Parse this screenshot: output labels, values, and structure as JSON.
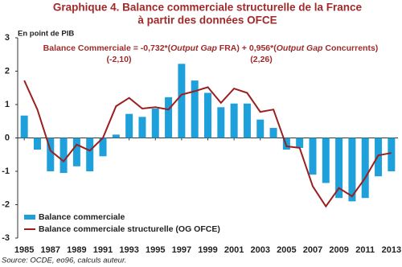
{
  "chart_data": {
    "type": "combo",
    "title": [
      "Graphique 4. Balance commerciale structurelle de la France",
      "à partir des données OFCE"
    ],
    "y_label": "En point de PIB",
    "annotation": {
      "parts": [
        "Balance Commerciale = -0,732*(",
        "Output Gap",
        " FRA) + 0,956*(",
        "Output Gap",
        " Concurrents)"
      ],
      "italic": [
        false,
        true,
        false,
        true,
        false
      ],
      "t_stats": [
        "(-2,10)",
        "(2,26)"
      ]
    },
    "source": "Source: OCDE, eo96, calculs auteur.",
    "x": [
      1985,
      1986,
      1987,
      1988,
      1989,
      1990,
      1991,
      1992,
      1993,
      1994,
      1995,
      1996,
      1997,
      1998,
      1999,
      2000,
      2001,
      2002,
      2003,
      2004,
      2005,
      2006,
      2007,
      2008,
      2009,
      2010,
      2011,
      2012,
      2013
    ],
    "xlim": [
      1984.5,
      2013.5
    ],
    "xticks": [
      1985,
      1987,
      1989,
      1991,
      1993,
      1995,
      1997,
      1999,
      2001,
      2003,
      2005,
      2007,
      2009,
      2011,
      2013
    ],
    "ylim": [
      -3,
      3
    ],
    "yticks": [
      -3,
      -2,
      -1,
      0,
      1,
      2,
      3
    ],
    "series": [
      {
        "name": "Balance commerciale",
        "type": "bar",
        "color": "#1ea0da",
        "values": [
          0.67,
          -0.35,
          -1.0,
          -1.05,
          -0.85,
          -1.0,
          -0.55,
          0.1,
          0.72,
          0.63,
          0.88,
          1.22,
          2.22,
          1.72,
          1.35,
          0.92,
          1.03,
          1.03,
          0.55,
          0.3,
          -0.35,
          -0.3,
          -1.1,
          -1.35,
          -1.8,
          -1.9,
          -1.8,
          -1.15,
          -1.0
        ]
      },
      {
        "name": "Balance commerciale structurelle (OG OFCE)",
        "type": "line",
        "color": "#9b1f1f",
        "values": [
          1.72,
          0.85,
          -0.38,
          -0.7,
          -0.2,
          -0.38,
          0.0,
          0.95,
          1.2,
          0.88,
          0.92,
          0.85,
          1.3,
          1.4,
          1.52,
          1.05,
          1.48,
          1.35,
          0.78,
          0.85,
          -0.25,
          -0.3,
          -1.45,
          -2.05,
          -1.5,
          -1.75,
          -1.2,
          -0.52,
          -0.45
        ]
      }
    ]
  }
}
